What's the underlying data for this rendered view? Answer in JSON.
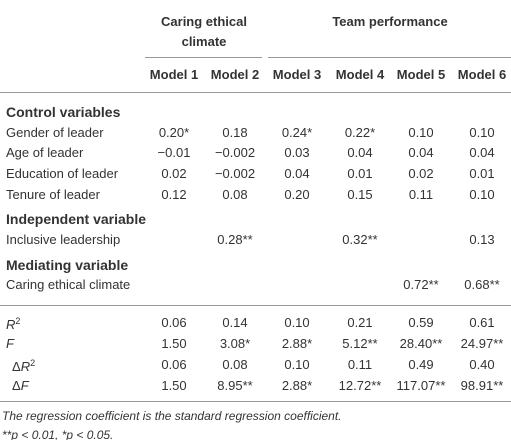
{
  "header": {
    "groups": [
      "Caring ethical climate",
      "Team performance"
    ],
    "models": [
      "Model 1",
      "Model 2",
      "Model 3",
      "Model 4",
      "Model 5",
      "Model 6"
    ]
  },
  "sections": [
    {
      "title": "Control variables",
      "rows": [
        {
          "label": "Gender of leader",
          "values": [
            "0.20*",
            "0.18",
            "0.24*",
            "0.22*",
            "0.10",
            "0.10"
          ]
        },
        {
          "label": "Age of leader",
          "values": [
            "−0.01",
            "−0.002",
            "0.03",
            "0.04",
            "0.04",
            "0.04"
          ]
        },
        {
          "label": "Education of leader",
          "values": [
            "0.02",
            "−0.002",
            "0.04",
            "0.01",
            "0.02",
            "0.01"
          ]
        },
        {
          "label": "Tenure of leader",
          "values": [
            "0.12",
            "0.08",
            "0.20",
            "0.15",
            "0.11",
            "0.10"
          ]
        }
      ]
    },
    {
      "title": "Independent variable",
      "rows": [
        {
          "label": "Inclusive leadership",
          "values": [
            null,
            "0.28**",
            null,
            "0.32**",
            null,
            "0.13"
          ]
        }
      ]
    },
    {
      "title": "Mediating variable",
      "rows": [
        {
          "label": "Caring ethical climate",
          "values": [
            null,
            null,
            null,
            null,
            "0.72**",
            "0.68**"
          ]
        }
      ]
    }
  ],
  "stats": [
    {
      "symbol": "R",
      "sup": "2",
      "values": [
        "0.06",
        "0.14",
        "0.10",
        "0.21",
        "0.59",
        "0.61"
      ]
    },
    {
      "symbol": "F",
      "values": [
        "1.50",
        "3.08*",
        "2.88*",
        "5.12**",
        "28.40**",
        "24.97**"
      ]
    },
    {
      "prefix": "Δ",
      "symbol": "R",
      "sup": "2",
      "values": [
        "0.06",
        "0.08",
        "0.10",
        "0.11",
        "0.49",
        "0.40"
      ]
    },
    {
      "prefix": "Δ",
      "symbol": "F",
      "values": [
        "1.50",
        "8.95**",
        "2.88*",
        "12.72**",
        "117.07**",
        "98.91**"
      ]
    }
  ],
  "notes": [
    "The regression coefficient is the standard regression coefficient.",
    "**p < 0.01, *p < 0.05."
  ]
}
